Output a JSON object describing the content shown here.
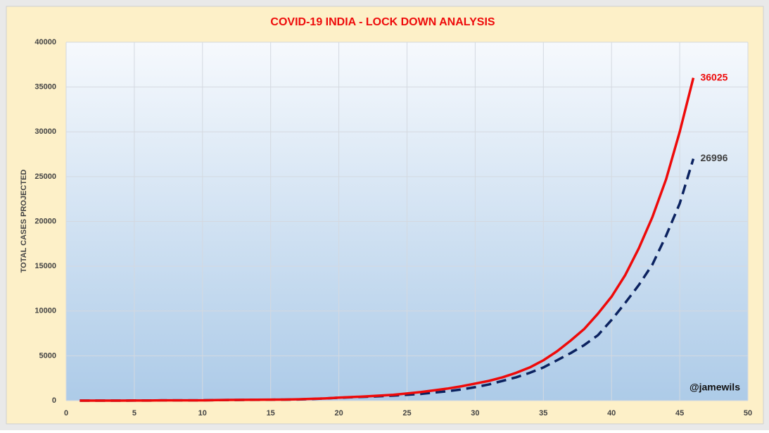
{
  "chart_data": {
    "type": "line",
    "title": "COVID-19 INDIA - LOCK DOWN ANALYSIS",
    "y_label": "TOTAL CASES PROJECTED",
    "annotation": "@jamewils",
    "x": [
      1,
      2,
      3,
      4,
      5,
      6,
      7,
      8,
      9,
      10,
      11,
      12,
      13,
      14,
      15,
      16,
      17,
      18,
      19,
      20,
      21,
      22,
      23,
      24,
      25,
      26,
      27,
      28,
      29,
      30,
      31,
      32,
      33,
      34,
      35,
      36,
      37,
      38,
      39,
      40,
      41,
      42,
      43,
      44,
      45,
      46
    ],
    "series": [
      {
        "color": "#ee0a0a",
        "line_style": "solid",
        "label_color": "#ee0a0a",
        "values": [
          1,
          2,
          3,
          3,
          5,
          6,
          28,
          30,
          31,
          34,
          60,
          80,
          90,
          100,
          110,
          120,
          150,
          200,
          250,
          330,
          400,
          470,
          560,
          650,
          800,
          950,
          1150,
          1350,
          1600,
          1900,
          2200,
          2600,
          3100,
          3700,
          4500,
          5500,
          6700,
          8000,
          9700,
          11600,
          14000,
          17000,
          20500,
          24700,
          30000,
          36025
        ]
      },
      {
        "color": "#0b2260",
        "line_style": "dashed",
        "label_color": "#404040",
        "values": [
          1,
          2,
          3,
          3,
          5,
          6,
          28,
          30,
          31,
          34,
          50,
          70,
          80,
          90,
          100,
          110,
          130,
          180,
          240,
          320,
          380,
          430,
          490,
          560,
          650,
          750,
          900,
          1050,
          1250,
          1500,
          1800,
          2200,
          2600,
          3100,
          3700,
          4500,
          5300,
          6200,
          7300,
          9000,
          10900,
          12900,
          15200,
          18400,
          22000,
          26996
        ]
      }
    ],
    "xlim": [
      0,
      50
    ],
    "xticks": [
      0,
      5,
      10,
      15,
      20,
      25,
      30,
      35,
      40,
      45,
      50
    ],
    "ylim": [
      0,
      40000
    ],
    "yticks": [
      0,
      5000,
      10000,
      15000,
      20000,
      25000,
      30000,
      35000,
      40000
    ],
    "grid": true
  }
}
